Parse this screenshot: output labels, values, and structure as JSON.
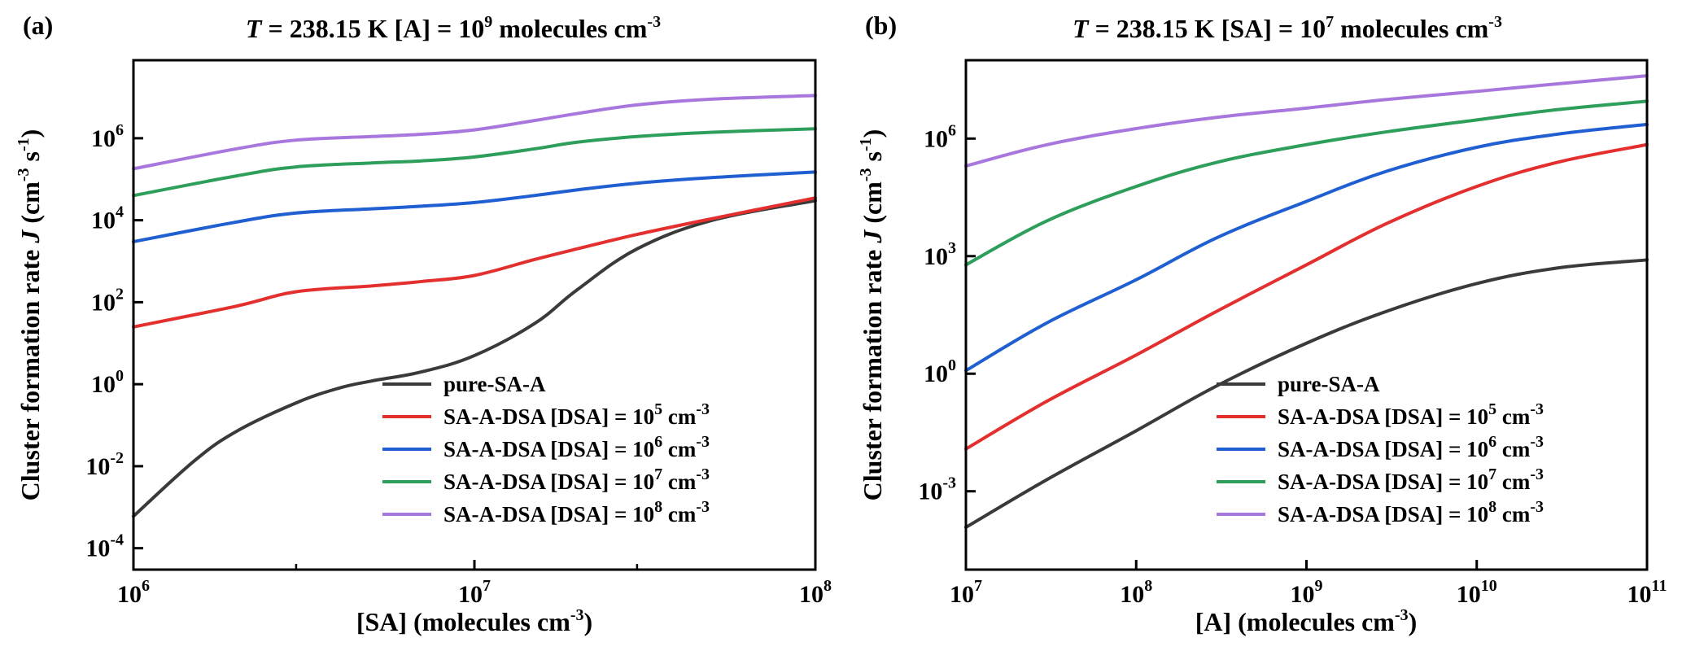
{
  "colors": {
    "pure": "#3a3a3a",
    "dsa5": "#e3302f",
    "dsa6": "#1f5fd1",
    "dsa7": "#2e9e5b",
    "dsa8": "#a877dd"
  },
  "chart_data": [
    {
      "type": "line",
      "panel_label": "(a)",
      "title": {
        "T": "T",
        "rest": " = 238.15 K  [A] = 10",
        "exp": "9",
        "tail": " molecules cm",
        "tail_exp": "-3"
      },
      "xlabel": {
        "main": "[SA] (molecules cm",
        "exp": "-3",
        "close": ")"
      },
      "ylabel": {
        "main": "Cluster formation rate ",
        "italic": "J",
        "rest": " (cm",
        "exp1": "-3",
        "mid": " s",
        "exp2": "-1",
        "close": ")"
      },
      "x_scale": "log",
      "y_scale": "log",
      "xlim": [
        1000000,
        100000000
      ],
      "ylim": [
        3e-05,
        80000000
      ],
      "x_ticks": [
        {
          "value": 1000000,
          "base": "10",
          "exp": "6"
        },
        {
          "value": 10000000,
          "base": "10",
          "exp": "7"
        },
        {
          "value": 100000000,
          "base": "10",
          "exp": "8"
        }
      ],
      "y_ticks": [
        {
          "value": 0.0001,
          "base": "10",
          "exp": "-4"
        },
        {
          "value": 0.01,
          "base": "10",
          "exp": "-2"
        },
        {
          "value": 1,
          "base": "10",
          "exp": "0"
        },
        {
          "value": 100,
          "base": "10",
          "exp": "2"
        },
        {
          "value": 10000,
          "base": "10",
          "exp": "4"
        },
        {
          "value": 1000000,
          "base": "10",
          "exp": "6"
        }
      ],
      "legend": {
        "position": "lower-right"
      },
      "series": [
        {
          "key": "pure",
          "name": "pure-SA-A",
          "name_exp": "",
          "name_tail": "",
          "x": [
            1000000,
            1500000,
            2000000,
            3000000,
            4000000,
            5000000,
            7000000,
            10000000,
            15000000,
            20000000,
            30000000,
            50000000,
            100000000
          ],
          "y": [
            0.0006,
            0.013,
            0.07,
            0.35,
            0.8,
            1.2,
            2.0,
            5.0,
            30,
            200,
            2000,
            10000,
            30000
          ]
        },
        {
          "key": "dsa5",
          "name": "SA-A-DSA [DSA] = 10",
          "name_exp": "5",
          "name_tail": " cm-3",
          "x": [
            1000000,
            2000000,
            3000000,
            5000000,
            7000000,
            10000000,
            15000000,
            20000000,
            30000000,
            50000000,
            100000000
          ],
          "y": [
            25,
            80,
            180,
            250,
            320,
            450,
            1100,
            2000,
            4500,
            11000,
            35000
          ]
        },
        {
          "key": "dsa6",
          "name": "SA-A-DSA [DSA] = 10",
          "name_exp": "6",
          "name_tail": " cm-3",
          "x": [
            1000000,
            2000000,
            3000000,
            5000000,
            7000000,
            10000000,
            15000000,
            20000000,
            30000000,
            50000000,
            100000000
          ],
          "y": [
            3000,
            9000,
            15000,
            19000,
            22000,
            27000,
            40000,
            55000,
            80000,
            110000,
            150000
          ]
        },
        {
          "key": "dsa7",
          "name": "SA-A-DSA [DSA] = 10",
          "name_exp": "7",
          "name_tail": " cm-3",
          "x": [
            1000000,
            2000000,
            3000000,
            5000000,
            7000000,
            10000000,
            15000000,
            20000000,
            30000000,
            50000000,
            100000000
          ],
          "y": [
            40000,
            120000,
            200000,
            250000,
            280000,
            350000,
            550000,
            800000,
            1100000,
            1400000,
            1700000
          ]
        },
        {
          "key": "dsa8",
          "name": "SA-A-DSA [DSA] = 10",
          "name_exp": "8",
          "name_tail": " cm-3",
          "x": [
            1000000,
            2000000,
            3000000,
            5000000,
            7000000,
            10000000,
            15000000,
            20000000,
            30000000,
            50000000,
            100000000
          ],
          "y": [
            180000,
            550000,
            900000,
            1100000,
            1250000,
            1600000,
            2700000,
            4000000,
            6500000,
            9000000,
            11000000
          ]
        }
      ]
    },
    {
      "type": "line",
      "panel_label": "(b)",
      "title": {
        "T": "T",
        "rest": " = 238.15 K  [SA] = 10",
        "exp": "7",
        "tail": " molecules cm",
        "tail_exp": "-3"
      },
      "xlabel": {
        "main": "[A] (molecules cm",
        "exp": "-3",
        "close": ")"
      },
      "ylabel": {
        "main": "Cluster formation rate ",
        "italic": "J",
        "rest": " (cm",
        "exp1": "-3",
        "mid": " s",
        "exp2": "-1",
        "close": ")"
      },
      "x_scale": "log",
      "y_scale": "log",
      "xlim": [
        10000000,
        100000000000
      ],
      "ylim": [
        1e-05,
        100000000
      ],
      "x_ticks": [
        {
          "value": 10000000,
          "base": "10",
          "exp": "7"
        },
        {
          "value": 100000000,
          "base": "10",
          "exp": "8"
        },
        {
          "value": 1000000000,
          "base": "10",
          "exp": "9"
        },
        {
          "value": 10000000000,
          "base": "10",
          "exp": "10"
        },
        {
          "value": 100000000000,
          "base": "10",
          "exp": "11"
        }
      ],
      "y_ticks": [
        {
          "value": 0.001,
          "base": "10",
          "exp": "-3"
        },
        {
          "value": 1,
          "base": "10",
          "exp": "0"
        },
        {
          "value": 1000,
          "base": "10",
          "exp": "3"
        },
        {
          "value": 1000000,
          "base": "10",
          "exp": "6"
        }
      ],
      "legend": {
        "position": "lower-right"
      },
      "series": [
        {
          "key": "pure",
          "name": "pure-SA-A",
          "name_exp": "",
          "name_tail": "",
          "x": [
            10000000,
            30000000,
            100000000,
            300000000,
            1000000000,
            3000000000,
            10000000000,
            30000000000,
            100000000000
          ],
          "y": [
            0.00012,
            0.002,
            0.035,
            0.5,
            6,
            40,
            200,
            500,
            800
          ]
        },
        {
          "key": "dsa5",
          "name": "SA-A-DSA [DSA] = 10",
          "name_exp": "5",
          "name_tail": " cm-3",
          "x": [
            10000000,
            30000000,
            100000000,
            300000000,
            1000000000,
            3000000000,
            10000000000,
            30000000000,
            100000000000
          ],
          "y": [
            0.012,
            0.2,
            3,
            40,
            600,
            7000,
            60000,
            250000,
            700000
          ]
        },
        {
          "key": "dsa6",
          "name": "SA-A-DSA [DSA] = 10",
          "name_exp": "6",
          "name_tail": " cm-3",
          "x": [
            10000000,
            30000000,
            100000000,
            300000000,
            1000000000,
            3000000000,
            10000000000,
            30000000000,
            100000000000
          ],
          "y": [
            1.2,
            20,
            250,
            3000,
            25000,
            150000,
            600000,
            1300000,
            2300000
          ]
        },
        {
          "key": "dsa7",
          "name": "SA-A-DSA [DSA] = 10",
          "name_exp": "7",
          "name_tail": " cm-3",
          "x": [
            10000000,
            30000000,
            100000000,
            300000000,
            1000000000,
            3000000000,
            10000000000,
            30000000000,
            100000000000
          ],
          "y": [
            600,
            8000,
            60000,
            250000,
            700000,
            1500000,
            3000000,
            5500000,
            9000000
          ]
        },
        {
          "key": "dsa8",
          "name": "SA-A-DSA [DSA] = 10",
          "name_exp": "8",
          "name_tail": " cm-3",
          "x": [
            10000000,
            30000000,
            100000000,
            300000000,
            1000000000,
            3000000000,
            10000000000,
            30000000000,
            100000000000
          ],
          "y": [
            200000,
            700000,
            1800000,
            3500000,
            6000000,
            10000000,
            16000000,
            25000000,
            40000000
          ]
        }
      ]
    }
  ]
}
